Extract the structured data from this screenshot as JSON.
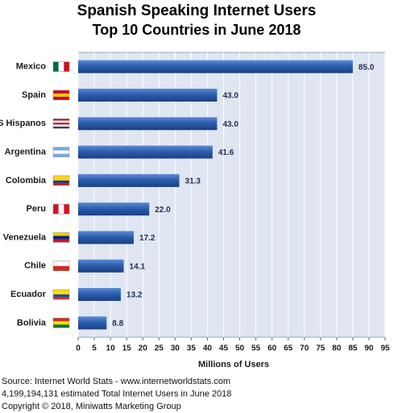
{
  "chart_data": {
    "type": "bar",
    "orientation": "horizontal",
    "title": "Spanish Speaking Internet Users",
    "subtitle": "Top 10 Countries in June 2018",
    "categories": [
      "Mexico",
      "Spain",
      "US Hispanos",
      "Argentina",
      "Colombia",
      "Peru",
      "Venezuela",
      "Chile",
      "Ecuador",
      "Bolivia"
    ],
    "values": [
      85.0,
      43.0,
      43.0,
      41.6,
      31.3,
      22.0,
      17.2,
      14.1,
      13.2,
      8.8
    ],
    "value_labels": [
      "85.0",
      "43.0",
      "43.0",
      "41.6",
      "31.3",
      "22.0",
      "17.2",
      "14.1",
      "13.2",
      "8.8"
    ],
    "color": "#2c5eae",
    "xlim": [
      0,
      95
    ],
    "xticks": [
      0,
      5,
      10,
      15,
      20,
      25,
      30,
      35,
      40,
      45,
      50,
      55,
      60,
      65,
      70,
      75,
      80,
      85,
      90,
      95
    ],
    "x_label": "Millions of Users",
    "grid": true,
    "footer": [
      "Source: Internet World Stats -  www.internetworldstats.com",
      "4,199,194,131 estimated Total Internet Users in June 2018",
      "Copyright © 2018, Miniwatts Marketing Group"
    ]
  }
}
